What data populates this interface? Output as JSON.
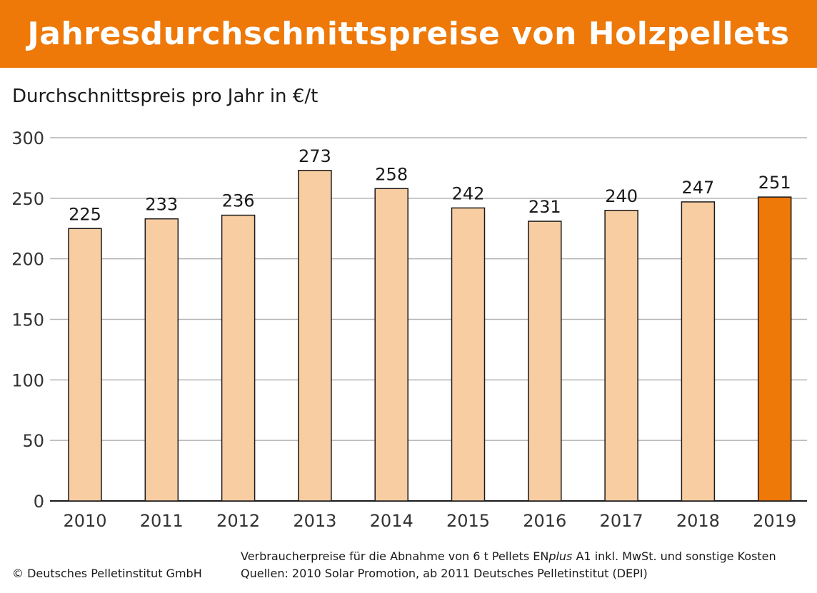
{
  "title": "Jahresdurchschnittspreise von Holzpellets",
  "footer": {
    "copyright": "© Deutsches Pelletinstitut GmbH",
    "note_prefix": "Verbraucherpreise für die Abnahme von 6 t Pellets EN",
    "note_italic": "plus",
    "note_suffix": " A1 inkl. MwSt. und sonstige Kosten",
    "sources": "Quellen: 2010 Solar Promotion, ab 2011 Deutsches Pelletinstitut (DEPI)"
  },
  "chart_data": {
    "type": "bar",
    "title": "Jahresdurchschnittspreise von Holzpellets",
    "subtitle": "Durchschnittspreis pro Jahr in €/t",
    "categories": [
      "2010",
      "2011",
      "2012",
      "2013",
      "2014",
      "2015",
      "2016",
      "2017",
      "2018",
      "2019"
    ],
    "values": [
      225,
      233,
      236,
      273,
      258,
      242,
      231,
      240,
      247,
      251
    ],
    "data_labels": [
      "225",
      "233",
      "236",
      "273",
      "258",
      "242",
      "231",
      "240",
      "247",
      "251"
    ],
    "ylim": [
      0,
      300
    ],
    "yticks": [
      "0",
      "50",
      "100",
      "150",
      "200",
      "250",
      "300"
    ],
    "grid": true,
    "colors": {
      "bar": "#f9cda2",
      "highlight": "#ee7808",
      "border": "#1a1a1a",
      "grid": "#b3b3b3"
    },
    "highlight_category": "2019"
  }
}
